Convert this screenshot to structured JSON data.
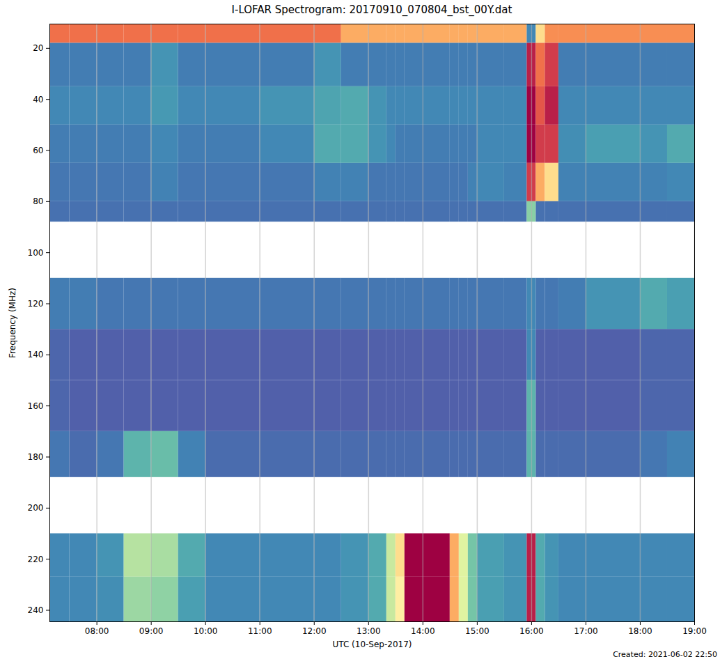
{
  "chart_data": {
    "type": "heatmap",
    "title": "I-LOFAR Spectrogram: 20170910_070804_bst_00Y.dat",
    "x_label": "UTC (10-Sep-2017)",
    "y_label": "Frequency (MHz)",
    "caption": "Created: 2021-06-02 22:50",
    "time_edges": [
      "2017-09-10T07:08",
      "2017-09-10T07:30",
      "2017-09-10T08:00",
      "2017-09-10T08:30",
      "2017-09-10T09:00",
      "2017-09-10T09:30",
      "2017-09-10T10:00",
      "2017-09-10T11:00",
      "2017-09-10T12:00",
      "2017-09-10T12:30",
      "2017-09-10T13:00",
      "2017-09-10T13:20",
      "2017-09-10T13:30",
      "2017-09-10T13:40",
      "2017-09-10T14:30",
      "2017-09-10T14:40",
      "2017-09-10T14:50",
      "2017-09-10T15:00",
      "2017-09-10T15:30",
      "2017-09-10T15:55",
      "2017-09-10T16:05",
      "2017-09-10T16:15",
      "2017-09-10T16:30",
      "2017-09-10T17:00",
      "2017-09-10T18:00",
      "2017-09-10T18:30",
      "2017-09-10T19:00"
    ],
    "frequency_edges": [
      10.5,
      18,
      35,
      50,
      65,
      80,
      88,
      110,
      130,
      150,
      170,
      188,
      210,
      227,
      244.5
    ],
    "intensity": [
      [
        0.8,
        0.8,
        0.8,
        0.8,
        0.8,
        0.8,
        0.8,
        0.8,
        0.8,
        0.7,
        0.7,
        0.7,
        0.7,
        0.7,
        0.7,
        0.7,
        0.7,
        0.7,
        0.7,
        0.1,
        0.6,
        0.75,
        0.75,
        0.75,
        0.75,
        0.75
      ],
      [
        0.08,
        0.08,
        0.08,
        0.08,
        0.12,
        0.08,
        0.08,
        0.08,
        0.12,
        0.08,
        0.08,
        0.08,
        0.08,
        0.08,
        0.08,
        0.08,
        0.08,
        0.08,
        0.08,
        0.95,
        0.8,
        0.9,
        0.08,
        0.08,
        0.08,
        0.08
      ],
      [
        0.1,
        0.1,
        0.1,
        0.1,
        0.13,
        0.1,
        0.1,
        0.12,
        0.15,
        0.16,
        0.12,
        0.1,
        0.1,
        0.1,
        0.1,
        0.1,
        0.1,
        0.1,
        0.1,
        1.0,
        0.85,
        0.95,
        0.1,
        0.1,
        0.1,
        0.1
      ],
      [
        0.08,
        0.08,
        0.08,
        0.08,
        0.1,
        0.08,
        0.08,
        0.1,
        0.16,
        0.16,
        0.12,
        0.1,
        0.08,
        0.08,
        0.08,
        0.08,
        0.08,
        0.1,
        0.1,
        1.0,
        0.9,
        0.9,
        0.11,
        0.14,
        0.12,
        0.16
      ],
      [
        0.07,
        0.07,
        0.07,
        0.07,
        0.09,
        0.07,
        0.07,
        0.07,
        0.09,
        0.09,
        0.07,
        0.07,
        0.07,
        0.07,
        0.07,
        0.07,
        0.09,
        0.1,
        0.09,
        0.9,
        0.7,
        0.6,
        0.09,
        0.09,
        0.09,
        0.1
      ],
      [
        0.06,
        0.06,
        0.06,
        0.06,
        0.06,
        0.06,
        0.06,
        0.06,
        0.06,
        0.06,
        0.06,
        0.06,
        0.06,
        0.06,
        0.06,
        0.06,
        0.06,
        0.06,
        0.06,
        0.25,
        0.06,
        0.06,
        0.06,
        0.06,
        0.06,
        0.06
      ],
      null,
      [
        0.08,
        0.08,
        0.07,
        0.07,
        0.07,
        0.07,
        0.07,
        0.07,
        0.07,
        0.07,
        0.07,
        0.07,
        0.07,
        0.07,
        0.07,
        0.07,
        0.07,
        0.07,
        0.07,
        0.1,
        0.07,
        0.07,
        0.08,
        0.12,
        0.16,
        0.14
      ],
      [
        0.04,
        0.03,
        0.03,
        0.03,
        0.03,
        0.03,
        0.03,
        0.03,
        0.03,
        0.03,
        0.03,
        0.03,
        0.03,
        0.03,
        0.03,
        0.03,
        0.03,
        0.03,
        0.03,
        0.1,
        0.03,
        0.03,
        0.03,
        0.03,
        0.04,
        0.04
      ],
      [
        0.04,
        0.03,
        0.03,
        0.03,
        0.03,
        0.03,
        0.03,
        0.03,
        0.03,
        0.03,
        0.03,
        0.03,
        0.03,
        0.03,
        0.03,
        0.03,
        0.03,
        0.03,
        0.03,
        0.18,
        0.03,
        0.03,
        0.03,
        0.03,
        0.04,
        0.04
      ],
      [
        0.07,
        0.05,
        0.07,
        0.18,
        0.2,
        0.09,
        0.05,
        0.05,
        0.05,
        0.05,
        0.05,
        0.05,
        0.05,
        0.05,
        0.05,
        0.05,
        0.05,
        0.05,
        0.05,
        0.18,
        0.05,
        0.05,
        0.05,
        0.05,
        0.07,
        0.09
      ],
      null,
      [
        0.1,
        0.1,
        0.12,
        0.32,
        0.3,
        0.16,
        0.1,
        0.1,
        0.1,
        0.12,
        0.16,
        0.35,
        0.6,
        1.0,
        0.7,
        0.4,
        0.22,
        0.14,
        0.12,
        0.95,
        0.16,
        0.12,
        0.1,
        0.1,
        0.1,
        0.1
      ],
      [
        0.1,
        0.1,
        0.11,
        0.28,
        0.26,
        0.14,
        0.1,
        0.1,
        0.1,
        0.12,
        0.16,
        0.35,
        0.55,
        1.0,
        0.7,
        0.4,
        0.22,
        0.14,
        0.12,
        0.95,
        0.16,
        0.12,
        0.1,
        0.1,
        0.1,
        0.1
      ]
    ],
    "zlim": [
      0,
      1
    ],
    "xlim": [
      "2017-09-10T07:08",
      "2017-09-10T19:00"
    ],
    "ylim": [
      244.5,
      10.5
    ],
    "xticks": [
      {
        "value": "2017-09-10T08:00",
        "label": "08:00"
      },
      {
        "value": "2017-09-10T09:00",
        "label": "09:00"
      },
      {
        "value": "2017-09-10T10:00",
        "label": "10:00"
      },
      {
        "value": "2017-09-10T11:00",
        "label": "11:00"
      },
      {
        "value": "2017-09-10T12:00",
        "label": "12:00"
      },
      {
        "value": "2017-09-10T13:00",
        "label": "13:00"
      },
      {
        "value": "2017-09-10T14:00",
        "label": "14:00"
      },
      {
        "value": "2017-09-10T15:00",
        "label": "15:00"
      },
      {
        "value": "2017-09-10T16:00",
        "label": "16:00"
      },
      {
        "value": "2017-09-10T17:00",
        "label": "17:00"
      },
      {
        "value": "2017-09-10T18:00",
        "label": "18:00"
      },
      {
        "value": "2017-09-10T19:00",
        "label": "19:00"
      }
    ],
    "yticks": [
      20,
      40,
      60,
      80,
      100,
      120,
      140,
      160,
      180,
      200,
      220,
      240
    ],
    "grid": true
  }
}
